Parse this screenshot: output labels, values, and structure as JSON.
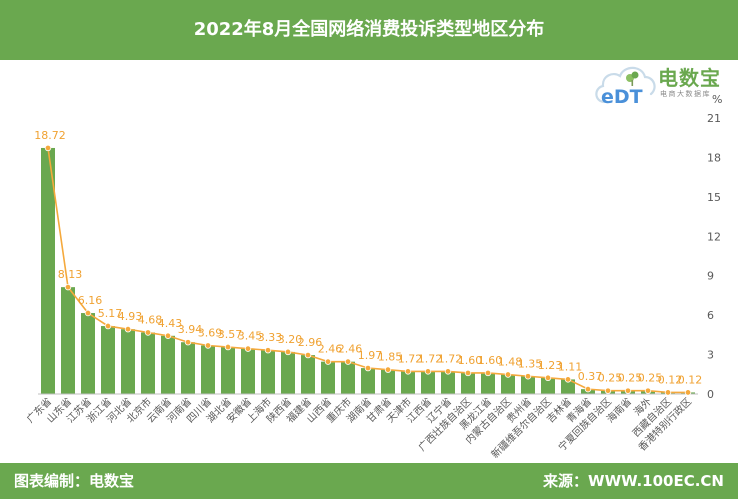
{
  "logo": {
    "mark": "eDT",
    "name": "电数宝",
    "tagline": "电商大数据库"
  },
  "footer": {
    "credit": "图表编制：电数宝",
    "source": "来源：WWW.100EC.CN"
  },
  "colors": {
    "banner": "#6aa84f",
    "bar": "#6aa84f",
    "line": "#f5a93c",
    "data_label": "#f0a232",
    "axis": "#bfbfbf"
  },
  "chart_data": {
    "type": "bar",
    "line_overlay": true,
    "title": "2022年8月全国网络消费投诉类型地区分布",
    "y_unit": "%",
    "y_axis_side": "right",
    "ylim": [
      0,
      21
    ],
    "yticks": [
      0,
      3,
      6,
      9,
      12,
      15,
      18,
      21
    ],
    "grid": false,
    "legend": "none",
    "categories": [
      "广东省",
      "山东省",
      "江苏省",
      "浙江省",
      "河北省",
      "北京市",
      "云南省",
      "河南省",
      "四川省",
      "湖北省",
      "安徽省",
      "上海市",
      "陕西省",
      "福建省",
      "山西省",
      "重庆市",
      "湖南省",
      "甘肃省",
      "天津市",
      "江西省",
      "辽宁省",
      "广西壮族自治区",
      "黑龙江省",
      "内蒙古自治区",
      "贵州省",
      "新疆维吾尔自治区",
      "吉林省",
      "青海省",
      "宁夏回族自治区",
      "海南省",
      "海外",
      "西藏自治区",
      "香港特别行政区"
    ],
    "values": [
      18.72,
      8.13,
      6.16,
      5.17,
      4.93,
      4.68,
      4.43,
      3.94,
      3.69,
      3.57,
      3.45,
      3.33,
      3.2,
      2.96,
      2.46,
      2.46,
      1.97,
      1.85,
      1.72,
      1.72,
      1.72,
      1.6,
      1.6,
      1.48,
      1.35,
      1.23,
      1.11,
      0.37,
      0.25,
      0.25,
      0.25,
      0.12,
      0.12
    ],
    "data_labels": [
      "18.72",
      "8.13",
      "6.16",
      "5.17",
      "4.93",
      "4.68",
      "4.43",
      "3.94",
      "3.69",
      "3.57",
      "3.45",
      "3.33",
      "3.20",
      "2.96",
      "2.46",
      "2.46",
      "1.97",
      "1.85",
      "1.72",
      "1.72",
      "1.72",
      "1.60",
      "1.60",
      "1.48",
      "1.35",
      "1.23",
      "1.11",
      "0.37",
      "0.25",
      "0.25",
      "0.25",
      "0.12",
      "0.12"
    ]
  }
}
